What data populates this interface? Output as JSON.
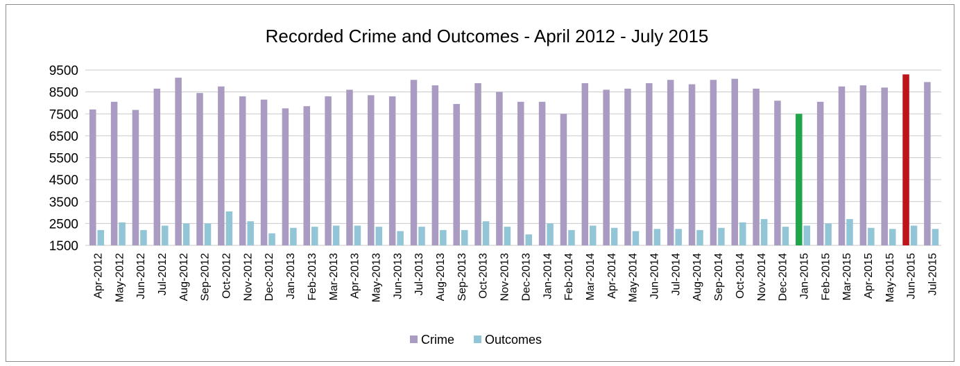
{
  "chart_data": {
    "type": "bar",
    "title": "Recorded Crime and Outcomes - April 2012 - July 2015",
    "xlabel": "",
    "ylabel": "",
    "ylim": [
      1500,
      9500
    ],
    "yticks": [
      1500,
      2500,
      3500,
      4500,
      5500,
      6500,
      7500,
      8500,
      9500
    ],
    "grid": true,
    "legend_position": "bottom",
    "categories": [
      "Apr-2012",
      "May-2012",
      "Jun-2012",
      "Jul-2012",
      "Aug-2012",
      "Sep-2012",
      "Oct-2012",
      "Nov-2012",
      "Dec-2012",
      "Jan-2013",
      "Feb-2013",
      "Mar-2013",
      "Apr-2013",
      "May-2013",
      "Jun-2013",
      "Jul-2013",
      "Aug-2013",
      "Sep-2013",
      "Oct-2013",
      "Nov-2013",
      "Dec-2013",
      "Jan-2014",
      "Feb-2014",
      "Mar-2014",
      "Apr-2014",
      "May-2014",
      "Jun-2014",
      "Jul-2014",
      "Aug-2014",
      "Sep-2014",
      "Oct-2014",
      "Nov-2014",
      "Dec-2014",
      "Jan-2015",
      "Feb-2015",
      "Mar-2015",
      "Apr-2015",
      "May-2015",
      "Jun-2015",
      "Jul-2015"
    ],
    "series": [
      {
        "name": "Crime",
        "color": "#a99bc1",
        "values": [
          7700,
          8050,
          7680,
          8650,
          9150,
          8450,
          8750,
          8300,
          8150,
          7750,
          7850,
          8300,
          8600,
          8350,
          8300,
          9050,
          8800,
          7950,
          8900,
          8500,
          8050,
          8050,
          7500,
          8900,
          8600,
          8650,
          8900,
          9050,
          8850,
          9050,
          9100,
          8650,
          8100,
          7500,
          8050,
          8750,
          8800,
          8700,
          9300,
          8950
        ],
        "highlights": [
          {
            "index": 33,
            "color": "#1fa64a"
          },
          {
            "index": 38,
            "color": "#c0141b"
          }
        ]
      },
      {
        "name": "Outcomes",
        "color": "#92c5d6",
        "values": [
          2200,
          2550,
          2200,
          2400,
          2500,
          2500,
          3050,
          2600,
          2050,
          2300,
          2350,
          2400,
          2400,
          2350,
          2150,
          2350,
          2200,
          2200,
          2600,
          2350,
          2000,
          2500,
          2200,
          2400,
          2300,
          2150,
          2250,
          2250,
          2200,
          2300,
          2550,
          2700,
          2350,
          2400,
          2500,
          2700,
          2300,
          2250,
          2400,
          2250
        ]
      }
    ]
  }
}
